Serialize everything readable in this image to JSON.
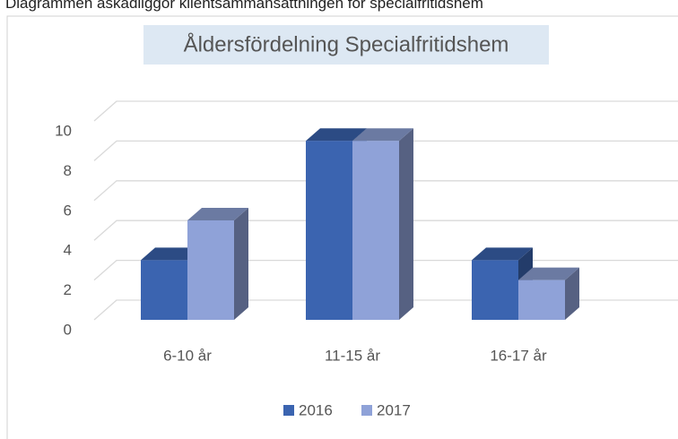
{
  "caption": "Diagrammen åskådliggör klientsammansättningen för specialfritidshem",
  "chart_data": {
    "type": "bar3d",
    "title": "Åldersfördelning Specialfritidshem",
    "categories": [
      "6-10 år",
      "11-15 år",
      "16-17 år"
    ],
    "series": [
      {
        "name": "2016",
        "color": "#3b64b0",
        "values": [
          3,
          9,
          3
        ]
      },
      {
        "name": "2017",
        "color": "#8fa2d8",
        "values": [
          5,
          9,
          2
        ]
      }
    ],
    "ylim": [
      0,
      10
    ],
    "yticks": [
      0,
      2,
      4,
      6,
      8,
      10
    ],
    "grid": true,
    "legend": "bottom"
  }
}
